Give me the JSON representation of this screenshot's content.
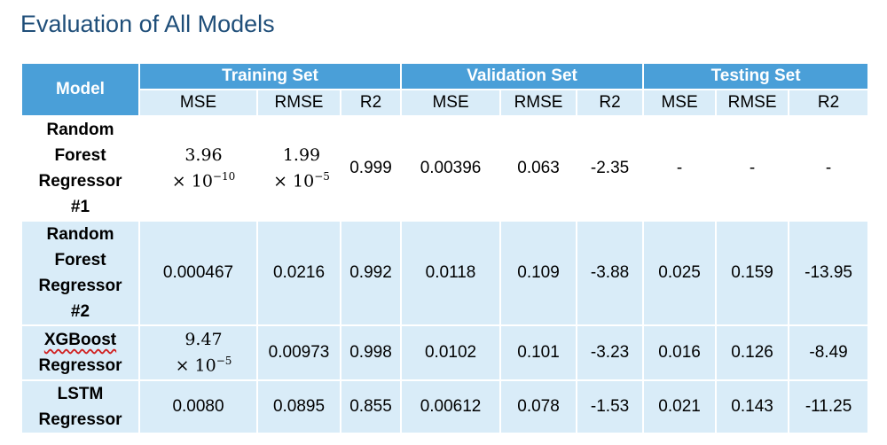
{
  "title": "Evaluation of All Models",
  "table": {
    "model_header": "Model",
    "groups": [
      "Training Set",
      "Validation Set",
      "Testing Set"
    ],
    "subheaders": [
      "MSE",
      "RMSE",
      "R2",
      "MSE",
      "RMSE",
      "R2",
      "MSE",
      "RMSE",
      "R2"
    ],
    "rows": [
      {
        "model_lines": [
          "Random",
          "Forest",
          "Regressor",
          "#1"
        ],
        "train_mse": {
          "mantissa": "3.96",
          "base": "× 10",
          "exp": "−10"
        },
        "train_rmse": {
          "mantissa": "1.99",
          "base": "× 10",
          "exp": "−5"
        },
        "train_r2": "0.999",
        "val_mse": "0.00396",
        "val_rmse": "0.063",
        "val_r2": "-2.35",
        "test_mse": "-",
        "test_rmse": "-",
        "test_r2": "-"
      },
      {
        "model_lines": [
          "Random",
          "Forest",
          "Regressor",
          "#2"
        ],
        "train_mse": "0.000467",
        "train_rmse": "0.0216",
        "train_r2": "0.992",
        "val_mse": "0.0118",
        "val_rmse": "0.109",
        "val_r2": "-3.88",
        "test_mse": "0.025",
        "test_rmse": "0.159",
        "test_r2": "-13.95"
      },
      {
        "model_lines": [
          "XGBoost",
          "Regressor"
        ],
        "train_mse": {
          "mantissa": "9.47",
          "base": "× 10",
          "exp": "−5"
        },
        "train_rmse": "0.00973",
        "train_r2": "0.998",
        "val_mse": "0.0102",
        "val_rmse": "0.101",
        "val_r2": "-3.23",
        "test_mse": "0.016",
        "test_rmse": "0.126",
        "test_r2": "-8.49"
      },
      {
        "model_lines": [
          "LSTM",
          "Regressor"
        ],
        "train_mse": "0.0080",
        "train_rmse": "0.0895",
        "train_r2": "0.855",
        "val_mse": "0.00612",
        "val_rmse": "0.078",
        "val_r2": "-1.53",
        "test_mse": "0.021",
        "test_rmse": "0.143",
        "test_r2": "-11.25"
      }
    ]
  },
  "colors": {
    "title": "#1f4e79",
    "header_blue": "#4a9fd8",
    "row_light_blue": "#d9ecf8",
    "row_white": "#ffffff"
  }
}
